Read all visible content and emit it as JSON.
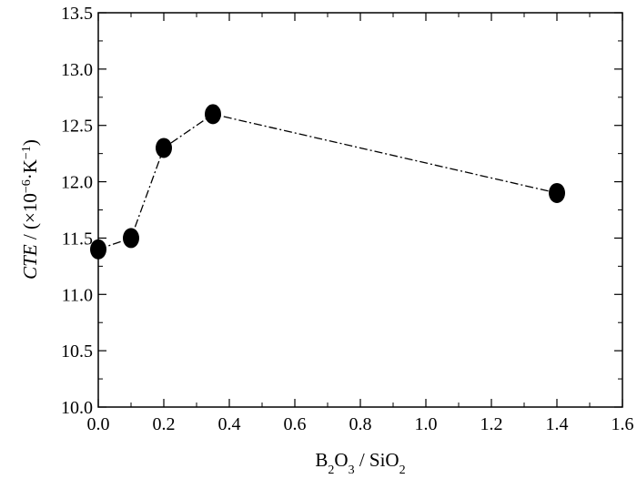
{
  "chart_data": {
    "type": "line",
    "marker": "filled-circle",
    "line_style": "dash-dot",
    "grid": false,
    "ticks_direction": "in",
    "xlabel": {
      "parts": [
        {
          "text": "B"
        },
        {
          "text": "2",
          "sub": true
        },
        {
          "text": "O"
        },
        {
          "text": "3",
          "sub": true
        },
        {
          "text": " / SiO"
        },
        {
          "text": "2",
          "sub": true
        }
      ]
    },
    "ylabel": {
      "parts": [
        {
          "text": "CTE",
          "italic": true
        },
        {
          "text": " / (×10"
        },
        {
          "text": "−6",
          "sup": true
        },
        {
          "text": "·K"
        },
        {
          "text": "−1",
          "sup": true
        },
        {
          "text": ")"
        }
      ]
    },
    "xlim": [
      0.0,
      1.6
    ],
    "ylim": [
      10.0,
      13.5
    ],
    "xticks": [
      "0.0",
      "0.2",
      "0.4",
      "0.6",
      "0.8",
      "1.0",
      "1.2",
      "1.4",
      "1.6"
    ],
    "yticks": [
      "10.0",
      "10.5",
      "11.0",
      "11.5",
      "12.0",
      "12.5",
      "13.0",
      "13.5"
    ],
    "x_minor_step": 0.1,
    "y_minor_step": 0.25,
    "series": [
      {
        "color": "#000000",
        "x": [
          0.0,
          0.1,
          0.2,
          0.35,
          1.4
        ],
        "y": [
          11.4,
          11.5,
          12.3,
          12.6,
          11.9
        ]
      }
    ]
  }
}
